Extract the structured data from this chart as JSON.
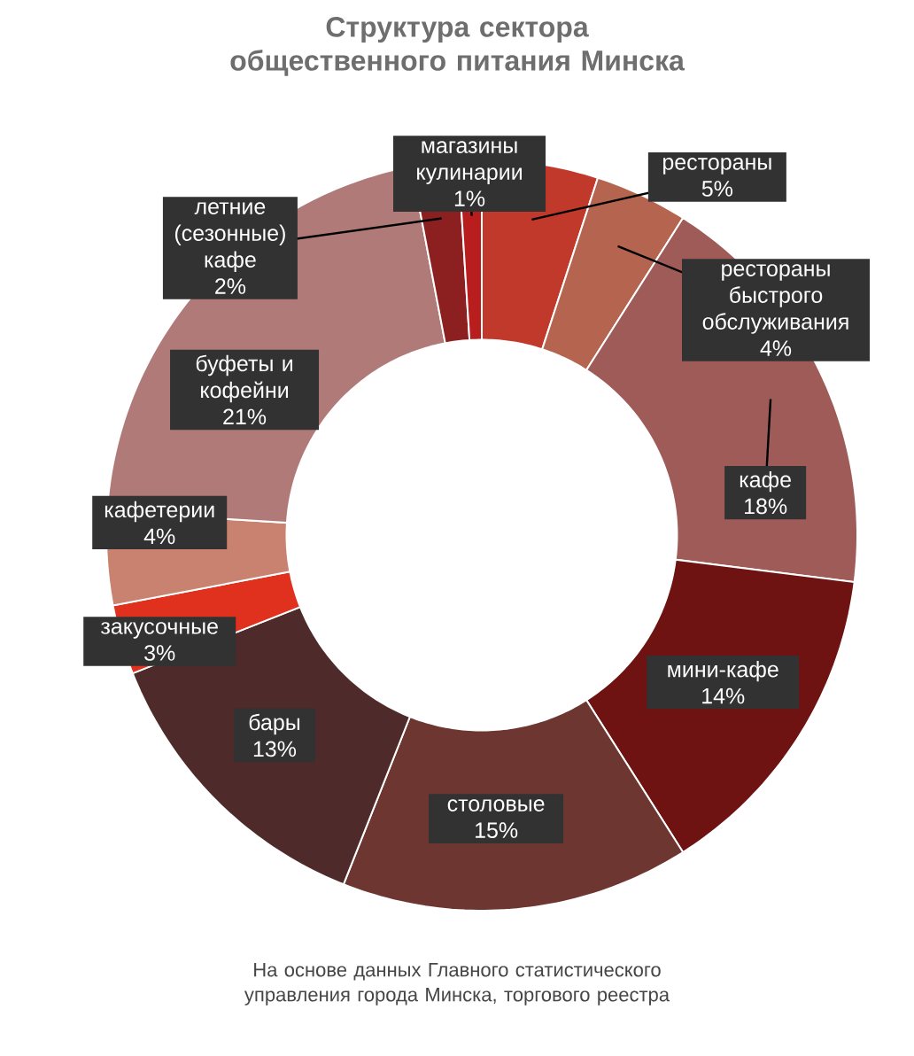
{
  "chart_data": {
    "type": "donut",
    "title": "Структура сектора общественного питания Минска",
    "categories": [
      "рестораны",
      "рестораны быстрого обслуживания",
      "кафе",
      "мини-кафе",
      "столовые",
      "бары",
      "закусочные",
      "кафетерии",
      "буфеты и кофейни",
      "летние (сезонные) кафе",
      "магазины кулинарии"
    ],
    "values": [
      5,
      4,
      18,
      14,
      15,
      13,
      3,
      4,
      21,
      2,
      1
    ],
    "value_labels": [
      "5%",
      "4%",
      "18%",
      "14%",
      "15%",
      "13%",
      "3%",
      "4%",
      "21%",
      "2%",
      "1%"
    ],
    "colors": [
      "#c0392b",
      "#b5654f",
      "#9e5b58",
      "#6e1212",
      "#6e3630",
      "#4e2a2a",
      "#e0301e",
      "#c98270",
      "#b07a78",
      "#8c2020",
      "#b81e1e"
    ],
    "annotations": [
      "На основе данных Главного статистического управления города Минска, торгового реестра"
    ]
  }
}
